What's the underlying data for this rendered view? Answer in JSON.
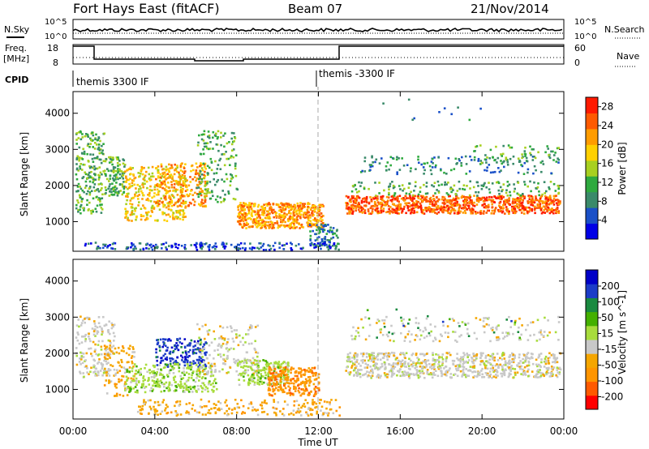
{
  "header": {
    "station": "Fort Hays East (fitACF)",
    "beam": "Beam 07",
    "date": "21/Nov/2014"
  },
  "top_panels": {
    "nsky_label": "N.Sky",
    "nsky_ticks": [
      "10^5",
      "10^0"
    ],
    "nsearch_label": "N.Search",
    "nsearch_ticks": [
      "10^5",
      "10^0"
    ],
    "freq_label_1": "Freq.",
    "freq_label_2": "[MHz]",
    "freq_ticks": [
      "18",
      "8"
    ],
    "nave_label": "Nave",
    "nave_ticks": [
      "60",
      "0"
    ],
    "cpid_label": "CPID",
    "cpid_segments": [
      "themis 3300 IF",
      "themis -3300 IF"
    ]
  },
  "axes": {
    "x_ticks": [
      "00:00",
      "04:00",
      "08:00",
      "12:00",
      "16:00",
      "20:00",
      "00:00"
    ],
    "xlabel": "Time UT",
    "ylabel": "Slant Range [km]",
    "y_ticks": [
      "1000",
      "2000",
      "3000",
      "4000"
    ]
  },
  "colors": {
    "power": [
      "#0000e6",
      "#1a50c8",
      "#3a8a6a",
      "#2faa3f",
      "#a8d020",
      "#ffd000",
      "#ff9c00",
      "#ff5a00",
      "#ff1a00"
    ],
    "velocity": [
      "#ff0000",
      "#ff5a00",
      "#ff9500",
      "#f5a600",
      "#c8c8c8",
      "#a8dc3c",
      "#44b000",
      "#1a8a40",
      "#1c3cc8",
      "#0000c8"
    ]
  },
  "chart_data": [
    {
      "type": "heatmap",
      "title": "",
      "xlabel": "Time UT",
      "ylabel": "Slant Range [km]",
      "xlim": [
        "00:00",
        "24:00"
      ],
      "ylim": [
        180,
        4600
      ],
      "colorbar": {
        "label": "Power [dB]",
        "ticks": [
          "4",
          "8",
          "12",
          "16",
          "20",
          "24",
          "28"
        ],
        "range": [
          0,
          30
        ]
      },
      "features": [
        {
          "time": "02:30-05:30",
          "range_km": [
            1000,
            2500
          ],
          "value_db": 18
        },
        {
          "time": "08:00-12:00",
          "range_km": [
            800,
            1500
          ],
          "value_db": 22
        },
        {
          "time": "13:30-23:30",
          "range_km": [
            1200,
            1700
          ],
          "value_db": 24
        },
        {
          "time": "14:00-23:50",
          "range_km": [
            2300,
            2800
          ],
          "value_db": 10
        }
      ]
    },
    {
      "type": "heatmap",
      "title": "",
      "xlabel": "Time UT",
      "ylabel": "Slant Range [km]",
      "xlim": [
        "00:00",
        "24:00"
      ],
      "ylim": [
        180,
        4600
      ],
      "colorbar": {
        "label": "Velocity [m s^-1]",
        "ticks": [
          "200",
          "100",
          "50",
          "15",
          "-15",
          "-50",
          "-100",
          "-200"
        ],
        "range": [
          -250,
          250
        ]
      },
      "features": [
        {
          "time": "04:00-06:30",
          "range_km": [
            1600,
            2400
          ],
          "value_ms": 150
        },
        {
          "time": "03:00-07:30",
          "range_km": [
            900,
            1600
          ],
          "value_ms": 40
        },
        {
          "time": "08:00-11:00",
          "range_km": [
            1100,
            1800
          ],
          "value_ms": 20
        },
        {
          "time": "09:30-12:00",
          "range_km": [
            800,
            1500
          ],
          "value_ms": -60
        },
        {
          "time": "13:30-23:30",
          "range_km": [
            1300,
            2000
          ],
          "value_ms": 0
        }
      ]
    }
  ]
}
